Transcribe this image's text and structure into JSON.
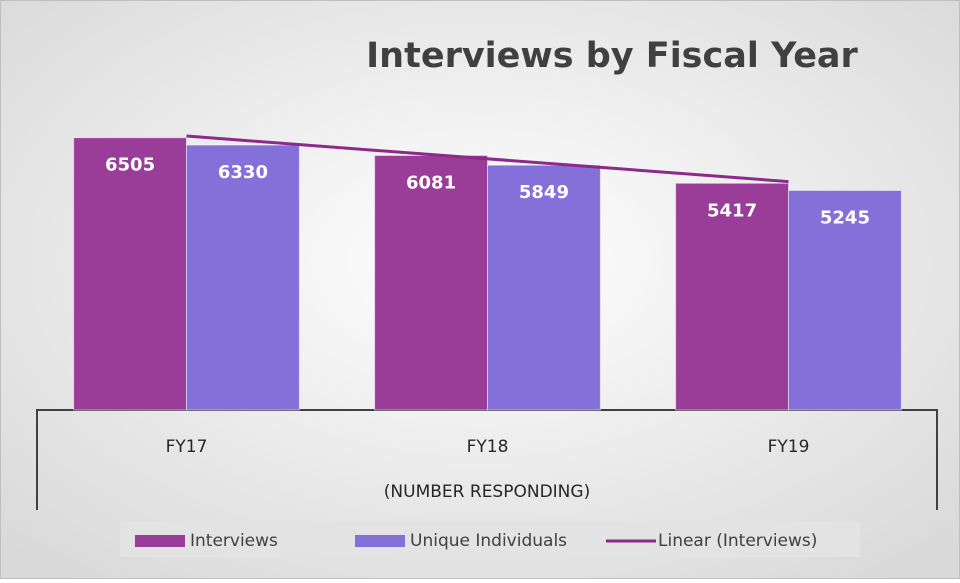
{
  "chart_data": {
    "type": "bar",
    "title": "Interviews by Fiscal Year",
    "x_label": "(NUMBER RESPONDING)",
    "categories": [
      "FY17",
      "FY18",
      "FY19"
    ],
    "series": [
      {
        "name": "Interviews",
        "color": "#993d99",
        "values": [
          6505,
          6081,
          5417
        ]
      },
      {
        "name": "Unique Individuals",
        "color": "#8470d9",
        "values": [
          6330,
          5849,
          5245
        ]
      }
    ],
    "trendline": {
      "name": "Linear (Interviews)",
      "color": "#8b2a8b"
    },
    "ylim": [
      0,
      7000
    ]
  }
}
